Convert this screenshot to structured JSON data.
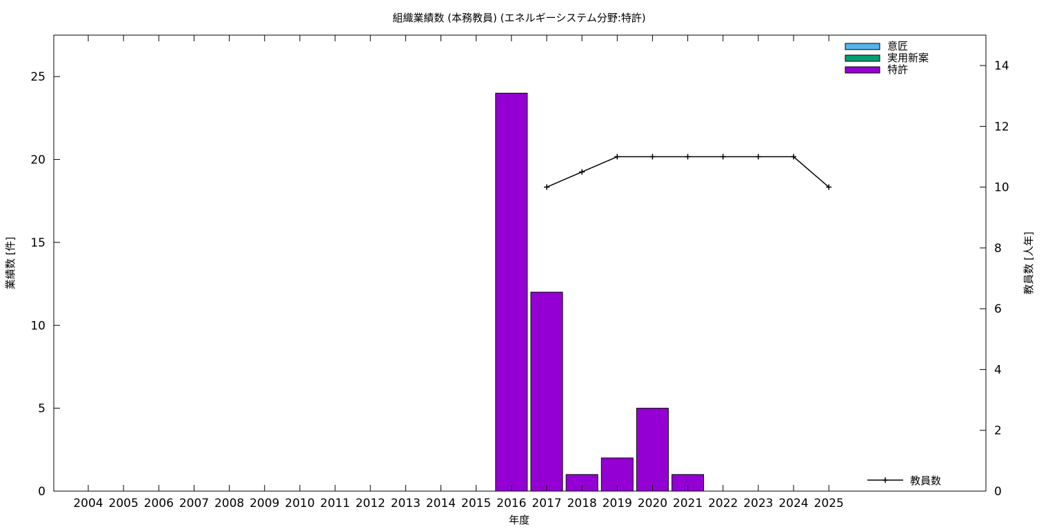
{
  "chart_data": {
    "type": "bar",
    "title": "組織業績数 (本務教員) (エネルギーシステム分野:特許)",
    "xlabel": "年度",
    "ylabel": "業績数 [件]",
    "y2label": "教員数 [人年]",
    "categories": [
      "2004",
      "2005",
      "2006",
      "2007",
      "2008",
      "2009",
      "2010",
      "2011",
      "2012",
      "2013",
      "2014",
      "2015",
      "2016",
      "2017",
      "2018",
      "2019",
      "2020",
      "2021",
      "2022",
      "2023",
      "2024",
      "2025"
    ],
    "ylim": [
      0,
      27.5
    ],
    "yticks": [
      0,
      5,
      10,
      15,
      20,
      25
    ],
    "y2lim": [
      0,
      15
    ],
    "y2ticks": [
      0,
      2,
      4,
      6,
      8,
      10,
      12,
      14
    ],
    "stacked": true,
    "series": [
      {
        "name": "意匠",
        "color": "#56b4e9",
        "values": [
          0,
          0,
          0,
          0,
          0,
          0,
          0,
          0,
          0,
          0,
          0,
          0,
          0,
          0,
          0,
          0,
          0,
          0,
          0,
          0,
          0,
          0
        ]
      },
      {
        "name": "実用新案",
        "color": "#009e73",
        "values": [
          0,
          0,
          0,
          0,
          0,
          0,
          0,
          0,
          0,
          0,
          0,
          0,
          0,
          0,
          0,
          0,
          0,
          0,
          0,
          0,
          0,
          0
        ]
      },
      {
        "name": "特許",
        "color": "#9400d3",
        "values": [
          0,
          0,
          0,
          0,
          0,
          0,
          0,
          0,
          0,
          0,
          0,
          0,
          24,
          12,
          1,
          2,
          5,
          1,
          0,
          0,
          0,
          0
        ]
      }
    ],
    "line": {
      "name": "教員数",
      "axis": "y2",
      "color": "#000000",
      "x": [
        "2017",
        "2018",
        "2019",
        "2020",
        "2021",
        "2022",
        "2023",
        "2024",
        "2025"
      ],
      "values": [
        10,
        10.5,
        11,
        11,
        11,
        11,
        11,
        11,
        10
      ]
    },
    "legend": "top-right",
    "line_legend": "bottom-right",
    "grid": false
  }
}
